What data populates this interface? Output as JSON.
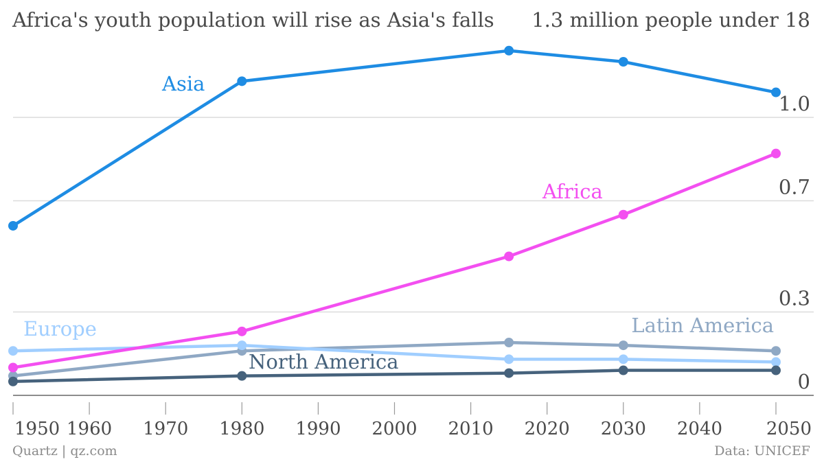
{
  "chart_data": {
    "type": "line",
    "title": "Africa's youth population will rise as Asia's falls",
    "units_label": "1.3 million people under 18",
    "xlabel": "",
    "ylabel": "",
    "x": [
      1950,
      1980,
      2015,
      2030,
      2050
    ],
    "xlim": [
      1950,
      2050
    ],
    "ylim": [
      0,
      1.3
    ],
    "x_ticks": [
      1950,
      1960,
      1970,
      1980,
      1990,
      2000,
      2010,
      2020,
      2030,
      2040,
      2050
    ],
    "y_ticks": [
      {
        "value": 0,
        "label": "0"
      },
      {
        "value": 0.3,
        "label": "0.3"
      },
      {
        "value": 0.7,
        "label": "0.7"
      },
      {
        "value": 1.0,
        "label": "1.0"
      }
    ],
    "grid": "horizontal",
    "series": [
      {
        "name": "Asia",
        "color": "#1e8ce3",
        "values": [
          0.61,
          1.13,
          1.24,
          1.2,
          1.09
        ]
      },
      {
        "name": "Africa",
        "color": "#f34ff0",
        "values": [
          0.1,
          0.23,
          0.5,
          0.65,
          0.87
        ]
      },
      {
        "name": "Europe",
        "color": "#a0ceff",
        "values": [
          0.16,
          0.18,
          0.13,
          0.13,
          0.12
        ]
      },
      {
        "name": "Latin America",
        "color": "#8fa8c4",
        "values": [
          0.07,
          0.16,
          0.19,
          0.18,
          0.16
        ]
      },
      {
        "name": "North America",
        "color": "#46627c",
        "values": [
          0.05,
          0.07,
          0.08,
          0.09,
          0.09
        ]
      }
    ],
    "legend_placement": "inline labels next to lines"
  },
  "footer": {
    "source_left": "Quartz | qz.com",
    "source_right": "Data: UNICEF"
  }
}
